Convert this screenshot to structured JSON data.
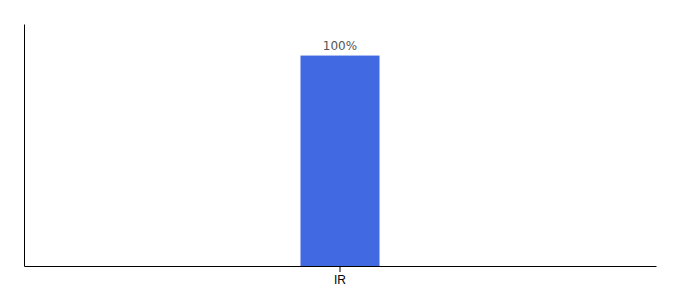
{
  "chart_data": {
    "type": "bar",
    "categories": [
      "IR"
    ],
    "values": [
      100
    ],
    "value_labels": [
      "100%"
    ],
    "color": "#4169e1",
    "ylim": [
      0,
      115
    ],
    "data_labels": true,
    "tick_labels": "x",
    "grid": false
  }
}
